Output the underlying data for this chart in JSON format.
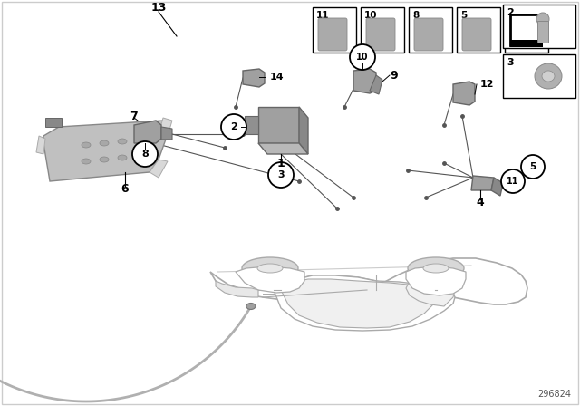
{
  "bg_color": "#ffffff",
  "fig_width": 6.4,
  "fig_height": 4.48,
  "diagram_number": "296824",
  "lc": "#aaaaaa",
  "lc_dark": "#555555",
  "part_gray": "#b0b0b0",
  "part_dark": "#888888"
}
